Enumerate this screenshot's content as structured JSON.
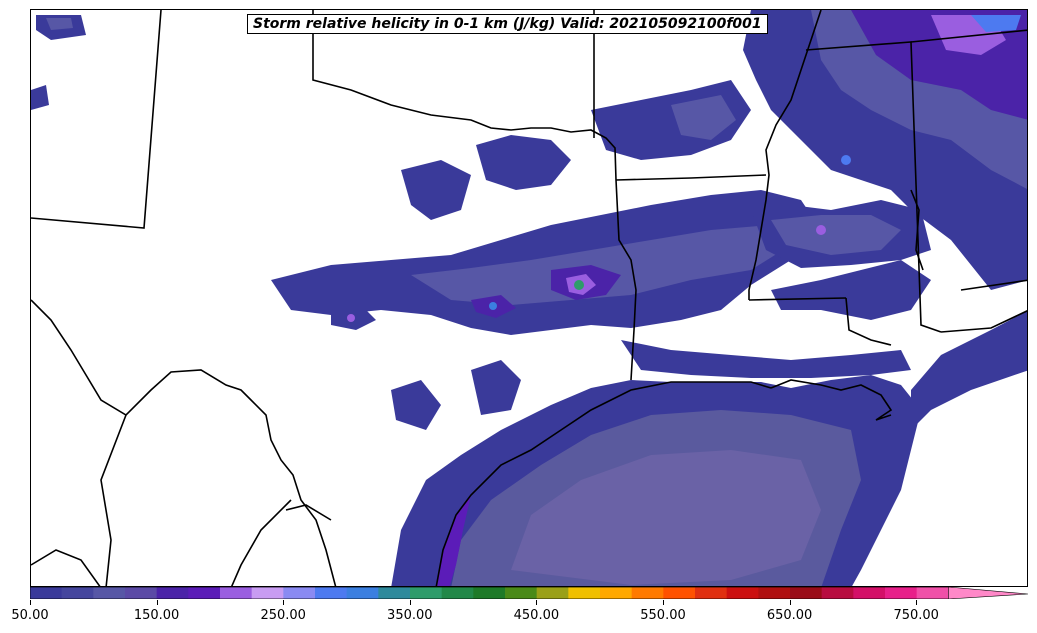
{
  "title": "Storm relative helicity in 0-1 km (J/kg) Valid: 202105092100f001",
  "colorbar": {
    "colors": [
      "#3a3a9a",
      "#45469e",
      "#5757a6",
      "#5b4aa6",
      "#4b23a8",
      "#5b1cb8",
      "#9a5ee0",
      "#c89cf2",
      "#8a8af2",
      "#4d7af0",
      "#3b7fe0",
      "#2e8a9c",
      "#2e9c6a",
      "#228848",
      "#1e7a28",
      "#4a8a18",
      "#9aa018",
      "#f0c000",
      "#ffa800",
      "#ff7a00",
      "#ff5200",
      "#e03010",
      "#cc1010",
      "#b01010",
      "#9a0c18",
      "#b80c40",
      "#d41068",
      "#e8208a",
      "#f050a8",
      "#ff88c8"
    ],
    "ticks": [
      "50.00",
      "150.00",
      "250.00",
      "350.00",
      "450.00",
      "550.00",
      "650.00",
      "750.00"
    ],
    "tick_values": [
      50,
      150,
      250,
      350,
      450,
      550,
      650,
      750
    ],
    "min": 50,
    "max": 837.5,
    "extend": "max"
  }
}
